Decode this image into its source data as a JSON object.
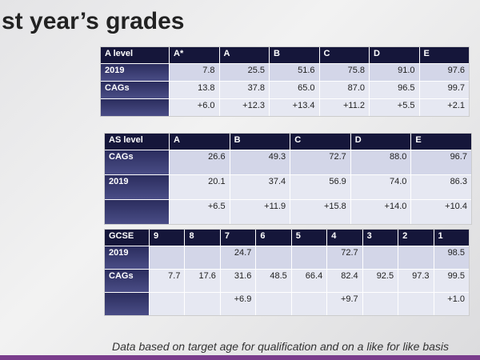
{
  "title": "st year’s grades",
  "a_level": {
    "header": [
      "A level",
      "A*",
      "A",
      "B",
      "C",
      "D",
      "E"
    ],
    "rows": [
      {
        "label": "2019",
        "values": [
          "7.8",
          "25.5",
          "51.6",
          "75.8",
          "91.0",
          "97.6"
        ]
      },
      {
        "label": "CAGs",
        "values": [
          "13.8",
          "37.8",
          "65.0",
          "87.0",
          "96.5",
          "99.7"
        ]
      }
    ],
    "diffs": [
      "+6.0",
      "+12.3",
      "+13.4",
      "+11.2",
      "+5.5",
      "+2.1"
    ]
  },
  "as_level": {
    "header": [
      "AS level",
      "A",
      "B",
      "C",
      "D",
      "E"
    ],
    "rows": [
      {
        "label": "CAGs",
        "values": [
          "26.6",
          "49.3",
          "72.7",
          "88.0",
          "96.7"
        ]
      },
      {
        "label": "2019",
        "values": [
          "20.1",
          "37.4",
          "56.9",
          "74.0",
          "86.3"
        ]
      }
    ],
    "diffs": [
      "+6.5",
      "+11.9",
      "+15.8",
      "+14.0",
      "+10.4"
    ]
  },
  "gcse": {
    "header": [
      "GCSE",
      "9",
      "8",
      "7",
      "6",
      "5",
      "4",
      "3",
      "2",
      "1"
    ],
    "rows": [
      {
        "label": "2019",
        "values": [
          null,
          null,
          "24.7",
          null,
          null,
          "72.7",
          null,
          null,
          "98.5"
        ]
      },
      {
        "label": "CAGs",
        "values": [
          "7.7",
          "17.6",
          "31.6",
          "48.5",
          "66.4",
          "82.4",
          "92.5",
          "97.3",
          "99.5"
        ]
      }
    ],
    "diffs": [
      null,
      null,
      "+6.9",
      null,
      null,
      "+9.7",
      null,
      null,
      "+1.0"
    ]
  },
  "footer": "Data based on target age for qualification and on a like for like basis"
}
